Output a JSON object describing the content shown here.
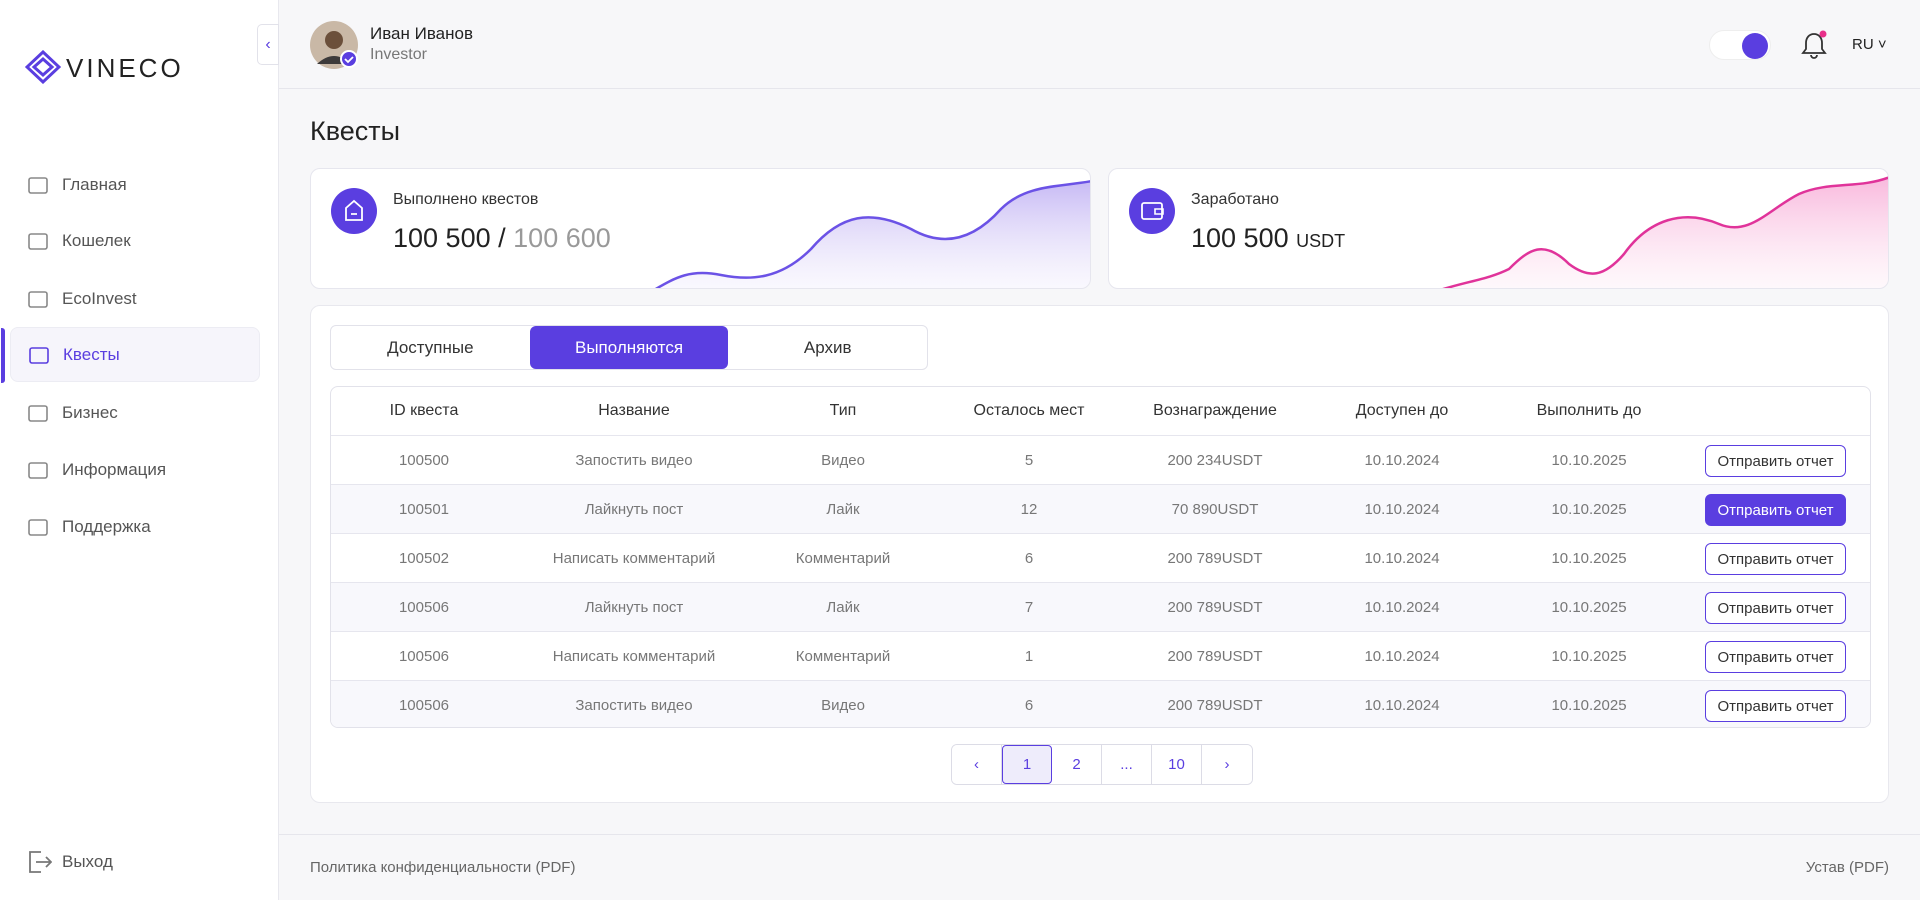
{
  "sidebar": {
    "logo": "VINECO",
    "nav": [
      "Главная",
      "Кошелек",
      "EcoInvest",
      "Квесты",
      "Бизнес",
      "Информация",
      "Поддержка"
    ],
    "logout": "Выход"
  },
  "header": {
    "user_name": "Иван Иванов",
    "user_role": "Investor",
    "language": "RU"
  },
  "page_title": "Квесты",
  "cards": {
    "completed": {
      "label": "Выполнено квестов",
      "value": "100 500",
      "separator": "/",
      "total": "100 600"
    },
    "earned": {
      "label": "Заработано",
      "value": "100 500",
      "unit": "USDT"
    }
  },
  "tabs": [
    "Доступные",
    "Выполняются",
    "Архив"
  ],
  "table": {
    "columns": [
      "ID квеста",
      "Название",
      "Тип",
      "Осталось мест",
      "Вознаграждение",
      "Доступен до",
      "Выполнить до"
    ],
    "rows": [
      [
        "100500",
        "Запостить видео",
        "Видео",
        "5",
        "200 234USDT",
        "10.10.2024",
        "10.10.2025",
        "Отправить отчет"
      ],
      [
        "100501",
        "Лайкнуть пост",
        "Лайк",
        "12",
        "70 890USDT",
        "10.10.2024",
        "10.10.2025",
        "Отправить отчет"
      ],
      [
        "100502",
        "Написать комментарий",
        "Комментарий",
        "6",
        "200 789USDT",
        "10.10.2024",
        "10.10.2025",
        "Отправить отчет"
      ],
      [
        "100506",
        "Лайкнуть пост",
        "Лайк",
        "7",
        "200 789USDT",
        "10.10.2024",
        "10.10.2025",
        "Отправить отчет"
      ],
      [
        "100506",
        "Написать комментарий",
        "Комментарий",
        "1",
        "200 789USDT",
        "10.10.2024",
        "10.10.2025",
        "Отправить отчет"
      ],
      [
        "100506",
        "Запостить видео",
        "Видео",
        "6",
        "200 789USDT",
        "10.10.2024",
        "10.10.2025",
        "Отправить отчет"
      ]
    ]
  },
  "pagination": [
    "1",
    "2",
    "...",
    "10"
  ],
  "footer": {
    "privacy": "Политика конфиденциальности (PDF)",
    "charter": "Устав (PDF)"
  }
}
